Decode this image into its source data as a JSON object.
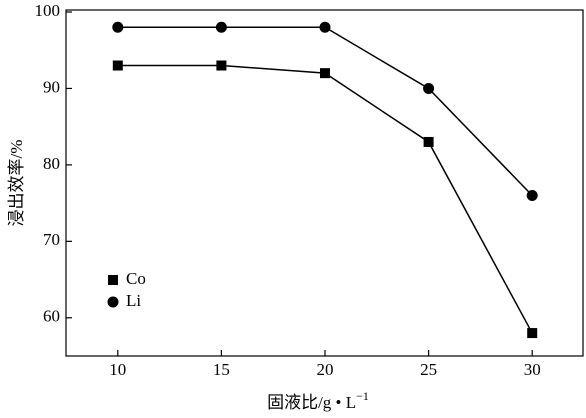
{
  "chart_data": {
    "type": "line",
    "x_label": "固液比/g • L",
    "x_label_superscript": "−1",
    "y_label": "浸出效率/%",
    "x": [
      10,
      15,
      20,
      25,
      30
    ],
    "xlim": [
      7.5,
      32.5
    ],
    "xticks": [
      10,
      15,
      20,
      25,
      30
    ],
    "ylim": [
      55,
      100
    ],
    "yticks": [
      60,
      70,
      80,
      90,
      100
    ],
    "grid": false,
    "legend": "lower left",
    "series": [
      {
        "name": "Co",
        "color": "#000000",
        "marker": "square",
        "values": [
          93,
          93,
          92,
          83,
          58
        ]
      },
      {
        "name": "Li",
        "color": "#000000",
        "marker": "circle",
        "values": [
          98,
          98,
          98,
          90,
          76
        ]
      }
    ]
  }
}
